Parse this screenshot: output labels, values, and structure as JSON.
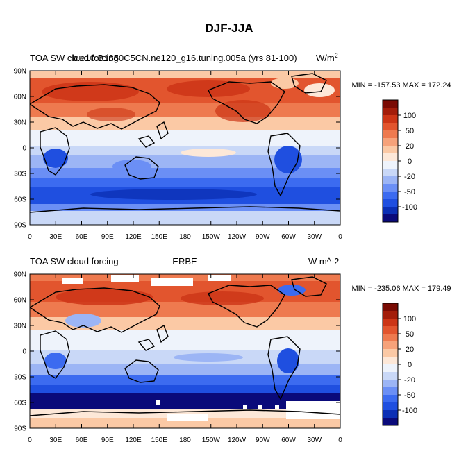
{
  "figure_title": "DJF-JJA",
  "colors": {
    "palette": [
      "#0a0a7a",
      "#0b2fb5",
      "#1f4fe0",
      "#3c6bf0",
      "#6b8ff5",
      "#9cb5f5",
      "#c9d8f7",
      "#eef3fb",
      "#fde8d8",
      "#fbc9a5",
      "#f6a27a",
      "#ee7a4f",
      "#e2552e",
      "#cc3516",
      "#a31d0a",
      "#7a0b04"
    ],
    "land": "#000000",
    "missing": "#ffffff"
  },
  "panels": [
    {
      "id": "model",
      "left_title": "TOA SW cloud forcing",
      "center_title": "b.e10.B1850C5CN.ne120_g16.tuning.005a (yrs 81-100)",
      "right_title": "W/m",
      "right_title_sup": "2",
      "minmax": "MIN = -157.53 MAX = 172.24",
      "lat_labels": [
        "90N",
        "60N",
        "30N",
        "0",
        "30S",
        "60S",
        "90S"
      ],
      "lon_labels": [
        "0",
        "30E",
        "60E",
        "90E",
        "120E",
        "150E",
        "180",
        "150W",
        "120W",
        "90W",
        "60W",
        "30W",
        "0"
      ],
      "colorbar_labels": [
        "100",
        "50",
        "20",
        "0",
        "-20",
        "-50",
        "-100"
      ]
    },
    {
      "id": "obs",
      "left_title": "TOA SW cloud forcing",
      "center_title": "ERBE",
      "right_title": "W m^-2",
      "right_title_sup": "",
      "minmax": "MIN = -235.06 MAX = 179.49",
      "lat_labels": [
        "90N",
        "60N",
        "30N",
        "0",
        "30S",
        "60S",
        "90S"
      ],
      "lon_labels": [
        "0",
        "30E",
        "60E",
        "90E",
        "120E",
        "150E",
        "180",
        "150W",
        "120W",
        "90W",
        "60W",
        "30W",
        "0"
      ],
      "colorbar_labels": [
        "100",
        "50",
        "20",
        "0",
        "-20",
        "-50",
        "-100"
      ]
    }
  ]
}
